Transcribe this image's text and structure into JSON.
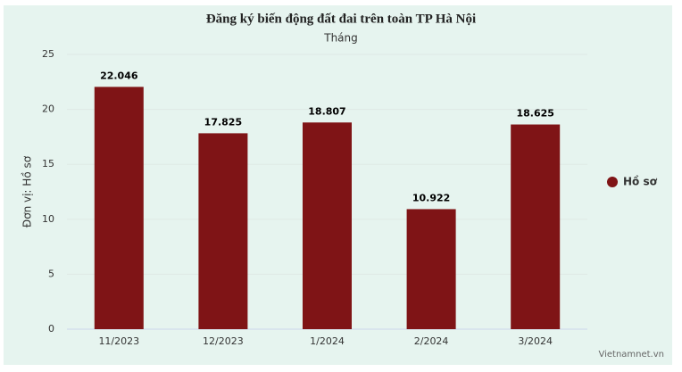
{
  "chart_data": {
    "type": "bar",
    "title": "Đăng ký biến động đất đai trên toàn TP Hà Nội",
    "subtitle": "Tháng",
    "y_label": "Đơn vị: Hồ sơ",
    "categories": [
      "11/2023",
      "12/2023",
      "1/2024",
      "2/2024",
      "3/2024"
    ],
    "series": [
      {
        "name": "Hồ sơ",
        "color": "#7f1416",
        "values": [
          22.046,
          17.825,
          18.807,
          10.922,
          18.625
        ]
      }
    ],
    "ylim": [
      0,
      25
    ],
    "yticks": [
      0,
      5,
      10,
      15,
      20,
      25
    ],
    "grid": true,
    "legend": "right",
    "credit": "Vietnamnet.vn"
  }
}
